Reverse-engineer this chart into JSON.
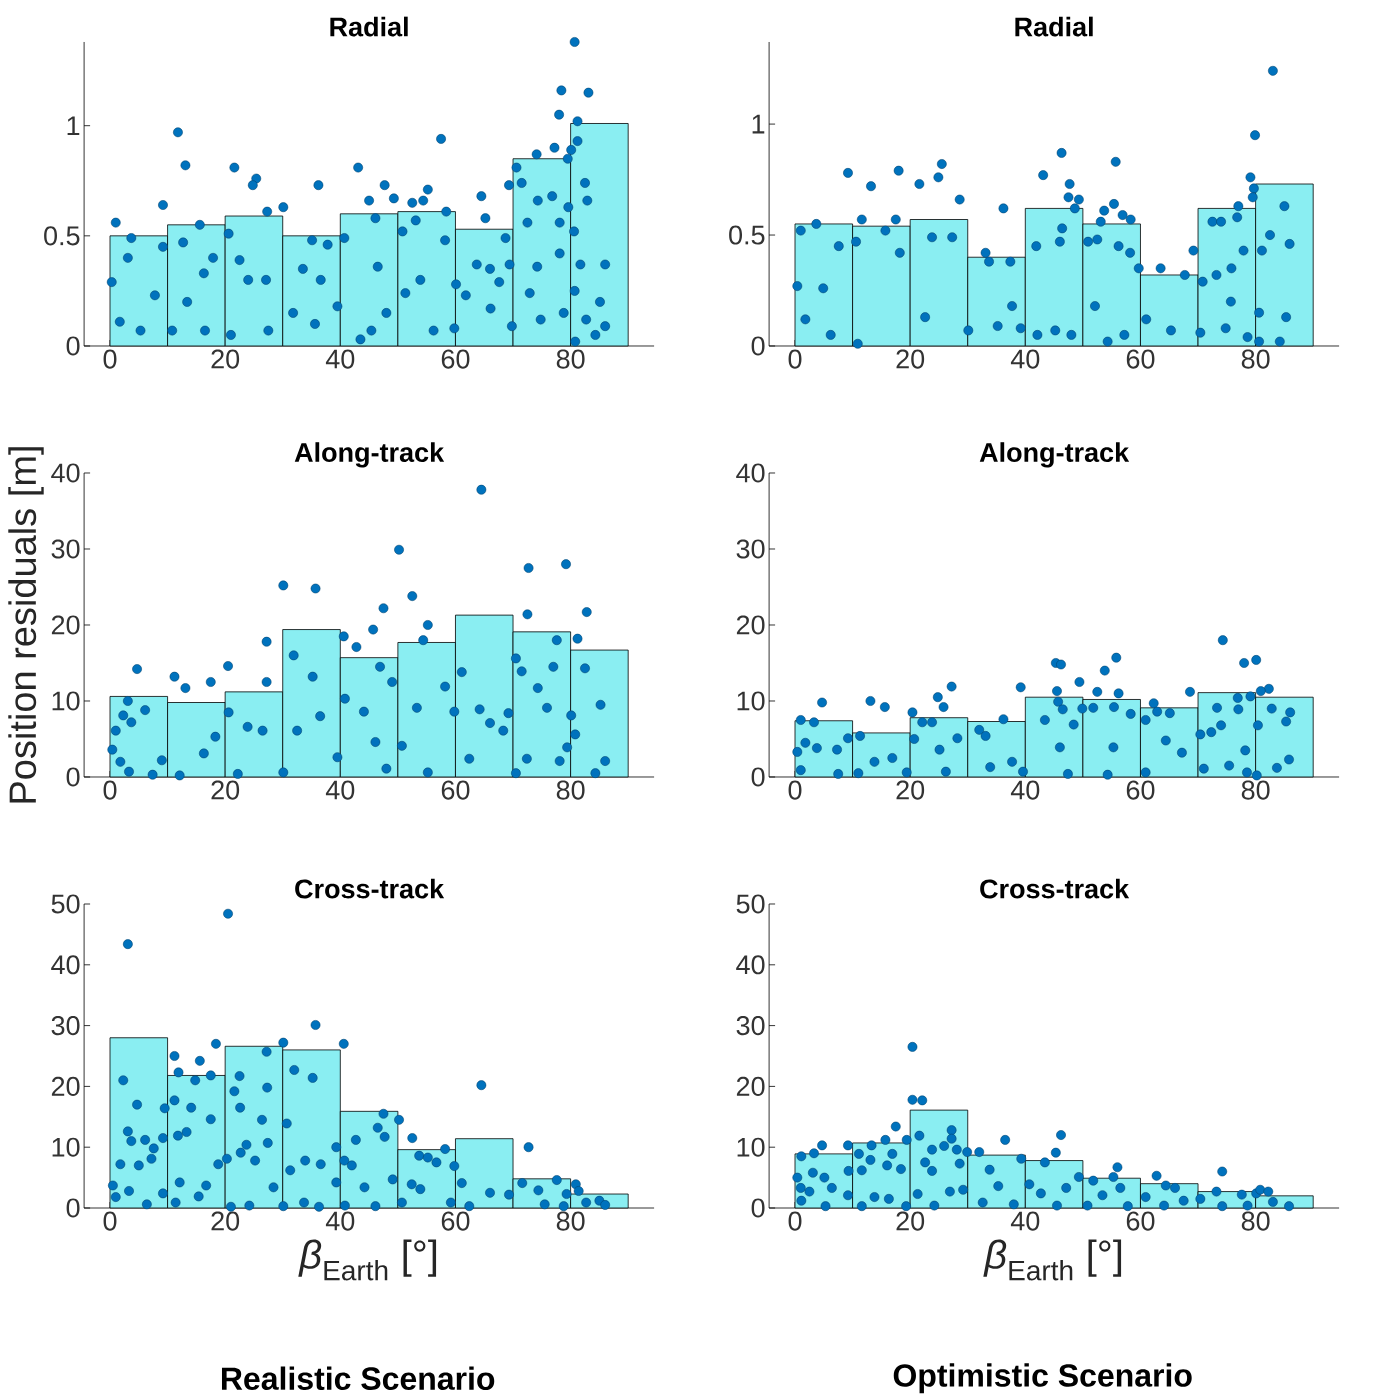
{
  "chart_data": [
    {
      "type": "histogram",
      "title": "Radial",
      "bins": [
        0,
        10,
        20,
        30,
        40,
        50,
        60,
        70,
        80,
        90
      ],
      "values": [
        0.5,
        0.55,
        0.59,
        0.5,
        0.6,
        0.61,
        0.53,
        0.85,
        1.01
      ],
      "color": "#8aeef2",
      "xlim": [
        -4.5,
        94.5
      ],
      "ylim": [
        0,
        1.38
      ],
      "xticks": [
        0,
        20,
        40,
        60,
        80
      ],
      "yticks": [
        0,
        0.5,
        1
      ],
      "series": [
        {
          "type": "scatter",
          "marker": "circle",
          "color": "#0072bd",
          "x": [
            80.7,
            78.4,
            83.1,
            78.0,
            81.2,
            81.2,
            77.2,
            80.1,
            79.5,
            74.1,
            70.6,
            71.5,
            69.3,
            82.5,
            82.9,
            76.8,
            74.3,
            79.6,
            72.5,
            78.1,
            80.6,
            86.0,
            85.1,
            84.3,
            80.8,
            86.0,
            82.7,
            78.1,
            74.2,
            69.4,
            68.7,
            64.5,
            65.2,
            67.6,
            66.1,
            61.8,
            60.1,
            57.5,
            55.2,
            54.4,
            52.5,
            49.3,
            47.7,
            43.1,
            45.0,
            46.1,
            50.8,
            53.1,
            58.4,
            58.2,
            36.2,
            37.8,
            35.1,
            30.1,
            27.3,
            25.4,
            24.8,
            21.6,
            13.1,
            11.8,
            9.2,
            15.6,
            1.0,
            3.7,
            3.1,
            0.3,
            1.7,
            5.3,
            7.8,
            9.2,
            12.7,
            20.6,
            22.5,
            24.0,
            27.1,
            21.0,
            27.5,
            16.5,
            10.8,
            13.4,
            16.3,
            17.9,
            31.8,
            33.5,
            36.6,
            39.5,
            35.6,
            43.5,
            40.7,
            46.5,
            45.4,
            48.0,
            51.3,
            53.9,
            56.2,
            59.8,
            63.7,
            66.0,
            69.8,
            74.8,
            72.9,
            78.8,
            80.7,
            81.7
          ],
          "values": [
            1.38,
            1.16,
            1.15,
            1.05,
            1.02,
            0.93,
            0.9,
            0.89,
            0.85,
            0.87,
            0.81,
            0.74,
            0.73,
            0.74,
            0.66,
            0.68,
            0.66,
            0.63,
            0.56,
            0.56,
            0.52,
            0.37,
            0.2,
            0.05,
            0.02,
            0.09,
            0.12,
            0.42,
            0.36,
            0.37,
            0.49,
            0.68,
            0.58,
            0.29,
            0.17,
            0.23,
            0.28,
            0.94,
            0.71,
            0.66,
            0.65,
            0.67,
            0.73,
            0.81,
            0.66,
            0.58,
            0.52,
            0.57,
            0.61,
            0.48,
            0.73,
            0.46,
            0.48,
            0.63,
            0.61,
            0.76,
            0.73,
            0.81,
            0.82,
            0.97,
            0.64,
            0.55,
            0.56,
            0.49,
            0.4,
            0.29,
            0.11,
            0.07,
            0.23,
            0.45,
            0.47,
            0.51,
            0.39,
            0.3,
            0.3,
            0.05,
            0.07,
            0.07,
            0.07,
            0.2,
            0.33,
            0.4,
            0.15,
            0.35,
            0.3,
            0.18,
            0.1,
            0.03,
            0.49,
            0.36,
            0.07,
            0.15,
            0.24,
            0.3,
            0.07,
            0.08,
            0.37,
            0.35,
            0.09,
            0.12,
            0.24,
            0.15,
            0.25,
            0.37
          ]
        }
      ]
    },
    {
      "type": "histogram",
      "title": "Radial",
      "bins": [
        0,
        10,
        20,
        30,
        40,
        50,
        60,
        70,
        80,
        90
      ],
      "values": [
        0.55,
        0.54,
        0.57,
        0.4,
        0.62,
        0.55,
        0.32,
        0.62,
        0.73
      ],
      "color": "#8aeef2",
      "xlim": [
        -4.5,
        94.5
      ],
      "ylim": [
        0,
        1.37
      ],
      "xticks": [
        0,
        20,
        40,
        60,
        80
      ],
      "yticks": [
        0,
        0.5,
        1
      ],
      "series": [
        {
          "type": "scatter",
          "marker": "circle",
          "color": "#0072bd",
          "x": [
            83.0,
            79.9,
            79.1,
            79.7,
            79.5,
            77.0,
            76.8,
            72.5,
            74.0,
            85.0,
            85.9,
            82.5,
            81.1,
            77.9,
            75.8,
            73.2,
            69.2,
            67.7,
            63.5,
            59.7,
            58.2,
            58.3,
            56.9,
            55.7,
            55.4,
            53.7,
            53.1,
            56.2,
            52.5,
            50.9,
            46.3,
            43.1,
            47.7,
            47.5,
            49.3,
            48.6,
            46.4,
            46.0,
            41.9,
            36.2,
            33.1,
            33.7,
            37.4,
            28.6,
            25.5,
            24.9,
            21.6,
            18.0,
            17.5,
            13.2,
            11.6,
            9.2,
            3.7,
            1.0,
            7.6,
            0.4,
            4.9,
            1.8,
            6.2,
            10.9,
            15.7,
            10.6,
            18.2,
            22.6,
            23.8,
            27.3,
            30.1,
            35.2,
            39.2,
            37.7,
            42.1,
            45.2,
            48.0,
            52.1,
            54.3,
            57.2,
            61.0,
            65.3,
            70.4,
            74.8,
            78.6,
            80.6,
            84.2,
            80.6,
            85.3,
            75.7,
            70.8
          ],
          "values": [
            1.24,
            0.95,
            0.76,
            0.71,
            0.67,
            0.63,
            0.58,
            0.56,
            0.56,
            0.63,
            0.46,
            0.5,
            0.43,
            0.43,
            0.35,
            0.32,
            0.43,
            0.32,
            0.35,
            0.35,
            0.42,
            0.57,
            0.59,
            0.83,
            0.64,
            0.61,
            0.56,
            0.45,
            0.48,
            0.47,
            0.87,
            0.77,
            0.73,
            0.67,
            0.66,
            0.62,
            0.53,
            0.47,
            0.45,
            0.62,
            0.42,
            0.38,
            0.38,
            0.66,
            0.82,
            0.76,
            0.73,
            0.79,
            0.57,
            0.72,
            0.57,
            0.78,
            0.55,
            0.52,
            0.45,
            0.27,
            0.26,
            0.12,
            0.05,
            0.01,
            0.52,
            0.47,
            0.42,
            0.13,
            0.49,
            0.49,
            0.07,
            0.09,
            0.08,
            0.18,
            0.05,
            0.07,
            0.05,
            0.18,
            0.02,
            0.05,
            0.12,
            0.07,
            0.06,
            0.08,
            0.04,
            0.02,
            0.02,
            0.15,
            0.13,
            0.2,
            0.29
          ]
        }
      ]
    },
    {
      "type": "histogram",
      "title": "Along-track",
      "ylabel": "Position residuals [m]",
      "bins": [
        0,
        10,
        20,
        30,
        40,
        50,
        60,
        70,
        80,
        90
      ],
      "values": [
        10.6,
        9.8,
        11.2,
        19.4,
        15.7,
        17.7,
        21.3,
        19.1,
        16.7
      ],
      "color": "#8aeef2",
      "xlim": [
        -4.5,
        94.5
      ],
      "ylim": [
        0,
        40
      ],
      "xticks": [
        0,
        20,
        40,
        60,
        80
      ],
      "yticks": [
        0,
        10,
        20,
        30,
        40
      ],
      "series": [
        {
          "type": "scatter",
          "marker": "circle",
          "color": "#0072bd",
          "x": [
            64.5,
            50.2,
            72.7,
            79.2,
            30.1,
            35.7,
            52.5,
            47.5,
            72.5,
            82.8,
            55.2,
            45.7,
            40.6,
            42.8,
            27.2,
            31.9,
            54.4,
            81.2,
            77.6,
            70.5,
            4.7,
            11.2,
            13.1,
            17.5,
            20.5,
            27.2,
            35.2,
            46.9,
            49.0,
            61.1,
            71.5,
            77.0,
            82.5,
            74.3,
            3.1,
            6.1,
            2.3,
            3.7,
            1.0,
            0.4,
            1.8,
            3.3,
            7.4,
            9.0,
            12.1,
            16.3,
            18.3,
            20.6,
            22.2,
            23.9,
            26.5,
            30.1,
            32.5,
            36.5,
            39.5,
            40.8,
            44.1,
            46.1,
            48.0,
            50.7,
            53.3,
            55.2,
            58.2,
            59.8,
            62.4,
            64.2,
            66.0,
            68.3,
            70.5,
            72.4,
            75.9,
            78.1,
            80.1,
            80.8,
            84.3,
            85.2,
            86.0,
            79.4,
            69.2
          ],
          "values": [
            37.8,
            29.9,
            27.5,
            28.0,
            25.2,
            24.8,
            23.8,
            22.2,
            21.4,
            21.7,
            20.0,
            19.4,
            18.5,
            17.1,
            17.8,
            16.0,
            18.0,
            18.2,
            18.0,
            15.6,
            14.2,
            13.2,
            11.7,
            12.5,
            14.6,
            12.5,
            13.2,
            14.5,
            12.5,
            13.8,
            13.9,
            14.5,
            14.3,
            11.7,
            10.0,
            8.8,
            8.1,
            7.2,
            6.1,
            3.6,
            2.0,
            0.7,
            0.3,
            2.2,
            0.2,
            3.1,
            5.3,
            8.5,
            0.4,
            6.6,
            6.1,
            0.6,
            6.1,
            8.0,
            2.6,
            10.3,
            8.6,
            4.6,
            1.1,
            4.1,
            9.1,
            0.6,
            11.9,
            8.6,
            2.4,
            8.9,
            7.1,
            6.1,
            0.5,
            2.4,
            9.1,
            2.1,
            8.1,
            5.6,
            0.5,
            9.5,
            2.1,
            3.9,
            8.4
          ]
        }
      ]
    },
    {
      "type": "histogram",
      "title": "Along-track",
      "bins": [
        0,
        10,
        20,
        30,
        40,
        50,
        60,
        70,
        80,
        90
      ],
      "values": [
        7.4,
        5.8,
        7.8,
        7.3,
        10.5,
        10.2,
        9.1,
        11.1,
        10.5
      ],
      "color": "#8aeef2",
      "xlim": [
        -4.5,
        94.5
      ],
      "ylim": [
        0,
        40
      ],
      "xticks": [
        0,
        20,
        40,
        60,
        80
      ],
      "yticks": [
        0,
        10,
        20,
        30,
        40
      ],
      "series": [
        {
          "type": "scatter",
          "marker": "circle",
          "color": "#0072bd",
          "x": [
            74.3,
            78.0,
            80.1,
            55.8,
            53.8,
            45.3,
            46.2,
            49.4,
            39.2,
            27.2,
            24.8,
            25.8,
            20.4,
            13.1,
            15.6,
            4.7,
            1.0,
            3.3,
            1.8,
            0.4,
            1.0,
            3.8,
            7.3,
            9.2,
            11.3,
            7.5,
            11.0,
            13.8,
            16.9,
            19.4,
            20.7,
            22.1,
            23.8,
            25.1,
            28.2,
            26.2,
            32.0,
            33.1,
            36.2,
            33.9,
            37.7,
            39.6,
            43.4,
            45.5,
            45.7,
            46.5,
            48.4,
            46.0,
            47.4,
            49.9,
            51.8,
            52.5,
            55.4,
            56.2,
            55.3,
            54.3,
            58.3,
            60.9,
            62.3,
            62.9,
            65.1,
            64.4,
            60.9,
            67.2,
            68.6,
            73.3,
            74.0,
            72.3,
            76.9,
            77.0,
            79.1,
            82.3,
            80.9,
            82.8,
            86.0,
            85.3,
            85.8,
            83.7,
            80.2,
            78.5,
            80.4,
            78.2,
            75.4,
            70.4,
            71.0
          ],
          "values": [
            18.0,
            15.0,
            15.4,
            15.7,
            14.0,
            15.0,
            14.8,
            12.5,
            11.8,
            11.9,
            10.5,
            9.2,
            8.5,
            10.0,
            9.2,
            9.8,
            7.5,
            7.2,
            4.5,
            3.3,
            0.9,
            3.8,
            3.6,
            5.1,
            5.4,
            0.4,
            0.5,
            2.0,
            2.5,
            0.6,
            5.0,
            7.2,
            7.2,
            3.6,
            5.1,
            0.7,
            6.2,
            5.4,
            7.6,
            1.3,
            2.0,
            0.7,
            7.5,
            11.3,
            9.9,
            8.9,
            6.9,
            3.9,
            0.4,
            9.0,
            9.1,
            11.2,
            9.2,
            11.0,
            3.9,
            0.3,
            8.3,
            7.5,
            9.7,
            8.6,
            8.4,
            4.8,
            0.6,
            3.2,
            11.2,
            9.1,
            6.8,
            5.9,
            10.4,
            8.9,
            10.6,
            11.6,
            11.3,
            9.0,
            8.5,
            7.3,
            2.3,
            1.2,
            0.2,
            0.6,
            6.8,
            3.5,
            1.5,
            5.6,
            1.1
          ]
        }
      ]
    },
    {
      "type": "histogram",
      "title": "Cross-track",
      "xlabel": "*β*$_{Earth}$ [°]",
      "annotations": [
        "Realistic Scenario"
      ],
      "bins": [
        0,
        10,
        20,
        30,
        40,
        50,
        60,
        70,
        80,
        90
      ],
      "values": [
        28.0,
        21.8,
        26.6,
        26.0,
        15.9,
        9.6,
        11.4,
        4.8,
        2.3
      ],
      "color": "#8aeef2",
      "xlim": [
        -4.5,
        94.5
      ],
      "ylim": [
        0,
        50
      ],
      "xticks": [
        0,
        20,
        40,
        60,
        80
      ],
      "yticks": [
        0,
        10,
        20,
        30,
        40,
        50
      ],
      "series": [
        {
          "type": "scatter",
          "marker": "circle",
          "color": "#0072bd",
          "x": [
            20.5,
            3.1,
            35.7,
            18.4,
            30.1,
            40.6,
            27.2,
            11.2,
            15.6,
            11.9,
            17.5,
            22.5,
            2.3,
            14.8,
            32.0,
            35.2,
            64.5,
            27.3,
            21.6,
            11.2,
            14.1,
            4.7,
            9.5,
            22.6,
            17.5,
            26.4,
            30.7,
            47.5,
            50.2,
            3.1,
            3.7,
            6.1,
            9.2,
            13.3,
            11.8,
            42.7,
            46.5,
            47.7,
            52.5,
            39.3,
            23.7,
            27.4,
            72.7,
            58.2,
            1.8,
            5.0,
            7.2,
            7.6,
            20.3,
            18.8,
            22.7,
            25.2,
            31.3,
            33.9,
            36.6,
            40.7,
            42.0,
            53.7,
            55.2,
            56.7,
            59.8,
            52.4,
            0.5,
            1.0,
            3.3,
            6.4,
            9.2,
            11.4,
            12.1,
            15.4,
            16.7,
            21.0,
            24.2,
            28.4,
            30.1,
            33.7,
            36.3,
            39.3,
            40.8,
            44.2,
            46.1,
            49.1,
            50.7,
            53.9,
            59.2,
            61.1,
            62.4,
            66.0,
            69.3,
            71.6,
            74.4,
            77.6,
            79.3,
            80.9,
            81.4,
            82.7,
            85.0,
            86.0,
            78.8,
            75.5
          ],
          "values": [
            48.4,
            43.4,
            30.1,
            27.0,
            27.2,
            27.0,
            25.7,
            25.0,
            24.2,
            22.3,
            21.8,
            21.7,
            21.0,
            21.0,
            22.7,
            21.4,
            20.2,
            19.8,
            19.2,
            17.7,
            16.5,
            17.0,
            16.4,
            16.5,
            14.6,
            14.5,
            13.9,
            15.5,
            14.5,
            12.6,
            11.0,
            11.2,
            11.5,
            12.5,
            11.9,
            11.2,
            13.2,
            11.7,
            11.5,
            10.0,
            10.4,
            10.7,
            10.0,
            9.7,
            7.2,
            7.0,
            8.1,
            9.8,
            8.1,
            7.2,
            9.1,
            7.8,
            6.2,
            7.8,
            7.2,
            7.8,
            7.0,
            8.6,
            8.3,
            7.5,
            6.9,
            3.9,
            3.7,
            1.8,
            2.8,
            0.6,
            2.4,
            0.9,
            4.2,
            1.9,
            3.7,
            0.2,
            0.4,
            3.4,
            0.3,
            0.9,
            0.2,
            4.2,
            0.4,
            3.4,
            0.3,
            4.7,
            0.9,
            3.1,
            0.9,
            4.1,
            0.3,
            2.5,
            2.2,
            4.1,
            2.9,
            4.6,
            2.3,
            3.9,
            2.8,
            0.9,
            1.2,
            0.5,
            0.3,
            0.6
          ]
        }
      ]
    },
    {
      "type": "histogram",
      "title": "Cross-track",
      "xlabel": "*β*$_{Earth}$ [°]",
      "annotations": [
        "Optimistic Scenario"
      ],
      "bins": [
        0,
        10,
        20,
        30,
        40,
        50,
        60,
        70,
        80,
        90
      ],
      "values": [
        8.9,
        10.7,
        16.1,
        8.7,
        7.8,
        4.9,
        4.0,
        2.7,
        2.0
      ],
      "color": "#8aeef2",
      "xlim": [
        -4.5,
        94.5
      ],
      "ylim": [
        0,
        50
      ],
      "xticks": [
        0,
        20,
        40,
        60,
        80
      ],
      "yticks": [
        0,
        10,
        20,
        30,
        40,
        50
      ],
      "series": [
        {
          "type": "scatter",
          "marker": "circle",
          "color": "#0072bd",
          "x": [
            20.4,
            20.4,
            22.1,
            17.5,
            27.2,
            27.2,
            46.2,
            21.6,
            19.4,
            15.7,
            13.3,
            9.2,
            4.7,
            36.5,
            32.0,
            29.9,
            28.1,
            23.8,
            25.9,
            16.9,
            11.1,
            3.3,
            1.1,
            45.3,
            39.3,
            43.4,
            56.0,
            62.8,
            74.2,
            64.4,
            66.0,
            33.8,
            28.6,
            23.8,
            22.6,
            16.0,
            18.4,
            13.1,
            11.6,
            9.3,
            3.1,
            0.4,
            5.1,
            1.0,
            2.5,
            1.1,
            5.3,
            6.4,
            9.2,
            11.6,
            13.8,
            16.3,
            19.3,
            21.3,
            24.2,
            26.9,
            29.2,
            32.6,
            35.3,
            38.0,
            40.7,
            42.7,
            45.5,
            47.1,
            49.3,
            50.8,
            51.8,
            53.4,
            55.3,
            56.5,
            57.8,
            60.9,
            64.1,
            67.5,
            70.4,
            73.2,
            74.2,
            77.6,
            80.1,
            80.8,
            82.2,
            83.0,
            85.8,
            78.6
          ],
          "values": [
            26.5,
            17.8,
            17.7,
            13.4,
            12.8,
            11.4,
            12.0,
            11.9,
            11.2,
            11.2,
            10.3,
            10.3,
            10.3,
            11.2,
            9.2,
            9.2,
            9.6,
            9.6,
            10.2,
            8.9,
            8.9,
            9.0,
            8.5,
            9.1,
            8.1,
            7.5,
            6.7,
            5.3,
            6.0,
            3.7,
            3.3,
            6.3,
            7.3,
            6.1,
            7.5,
            7.0,
            6.4,
            7.9,
            6.2,
            6.1,
            5.8,
            5.0,
            5.0,
            3.3,
            2.7,
            1.2,
            0.3,
            3.3,
            2.1,
            0.3,
            1.8,
            1.5,
            0.3,
            2.3,
            0.4,
            2.7,
            3.0,
            0.9,
            3.6,
            0.6,
            3.9,
            2.4,
            0.4,
            3.3,
            5.1,
            0.4,
            4.5,
            2.1,
            5.1,
            3.3,
            0.3,
            1.8,
            0.4,
            1.2,
            1.5,
            2.7,
            0.3,
            2.2,
            2.4,
            3.0,
            2.7,
            1.0,
            0.3,
            0.4
          ]
        }
      ]
    }
  ]
}
